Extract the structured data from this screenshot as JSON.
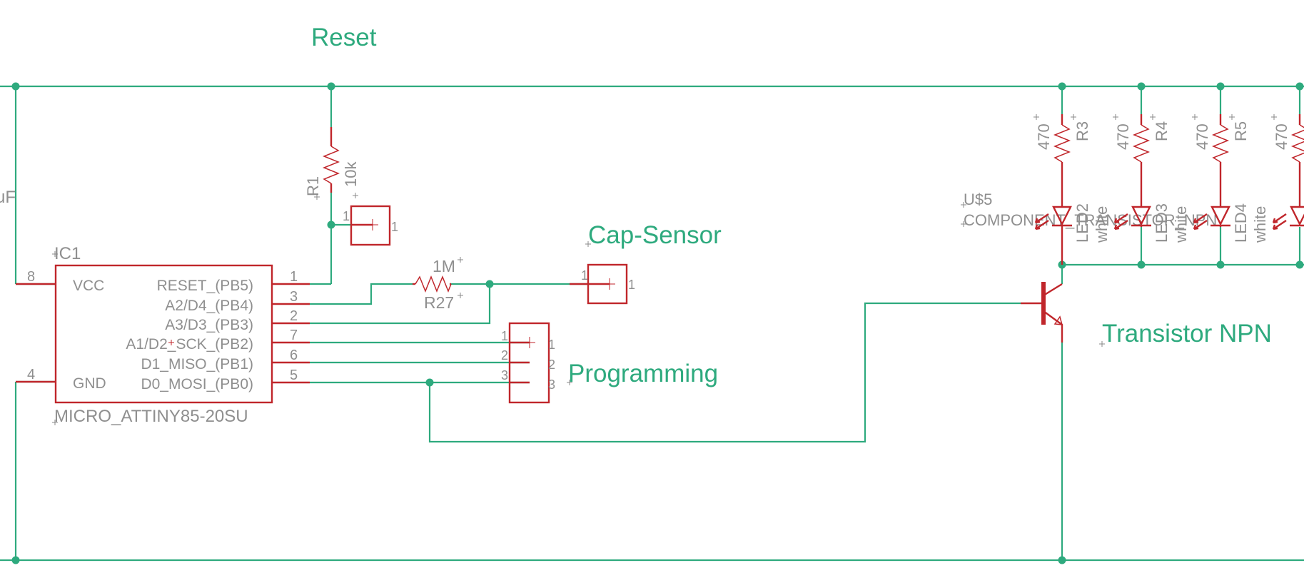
{
  "labels": {
    "reset": "Reset",
    "cap_sensor": "Cap-Sensor",
    "programming": "Programming",
    "transistor": "Transistor NPN",
    "cap_value_partial": "uF"
  },
  "ic1": {
    "name": "IC1",
    "value": "MICRO_ATTINY85-20SU",
    "pins_left": [
      {
        "num": "8",
        "name": "VCC"
      },
      {
        "num": "4",
        "name": "GND"
      }
    ],
    "pins_right": [
      {
        "num": "1",
        "name": "RESET_(PB5)"
      },
      {
        "num": "3",
        "name": "A2/D4_(PB4)"
      },
      {
        "num": "2",
        "name": "A3/D3_(PB3)"
      },
      {
        "num": "7",
        "name": "A1/D2_SCK_(PB2)"
      },
      {
        "num": "6",
        "name": "D1_MISO_(PB1)"
      },
      {
        "num": "5",
        "name": "D0_MOSI_(PB0)"
      }
    ]
  },
  "r1": {
    "name": "R1",
    "value": "10k"
  },
  "r27": {
    "name": "R27",
    "value": "1M"
  },
  "reset_pad_pin": "1",
  "reset_pad_num": "1",
  "cap_pad_pin": "1",
  "cap_pad_num": "1",
  "programming_header": {
    "pins": [
      "1",
      "2",
      "3"
    ]
  },
  "transistor_part": {
    "name": "U$5",
    "value": "COMPONENT_TRANSISTOR_NPN"
  },
  "led_resistors": [
    {
      "name": "R3",
      "value": "470"
    },
    {
      "name": "R4",
      "value": "470"
    },
    {
      "name": "R5",
      "value": "470"
    },
    {
      "name": "",
      "value": "470"
    }
  ],
  "leds": [
    {
      "name": "LED2",
      "value": "white"
    },
    {
      "name": "LED3",
      "value": "white"
    },
    {
      "name": "LED4",
      "value": "white"
    }
  ]
}
